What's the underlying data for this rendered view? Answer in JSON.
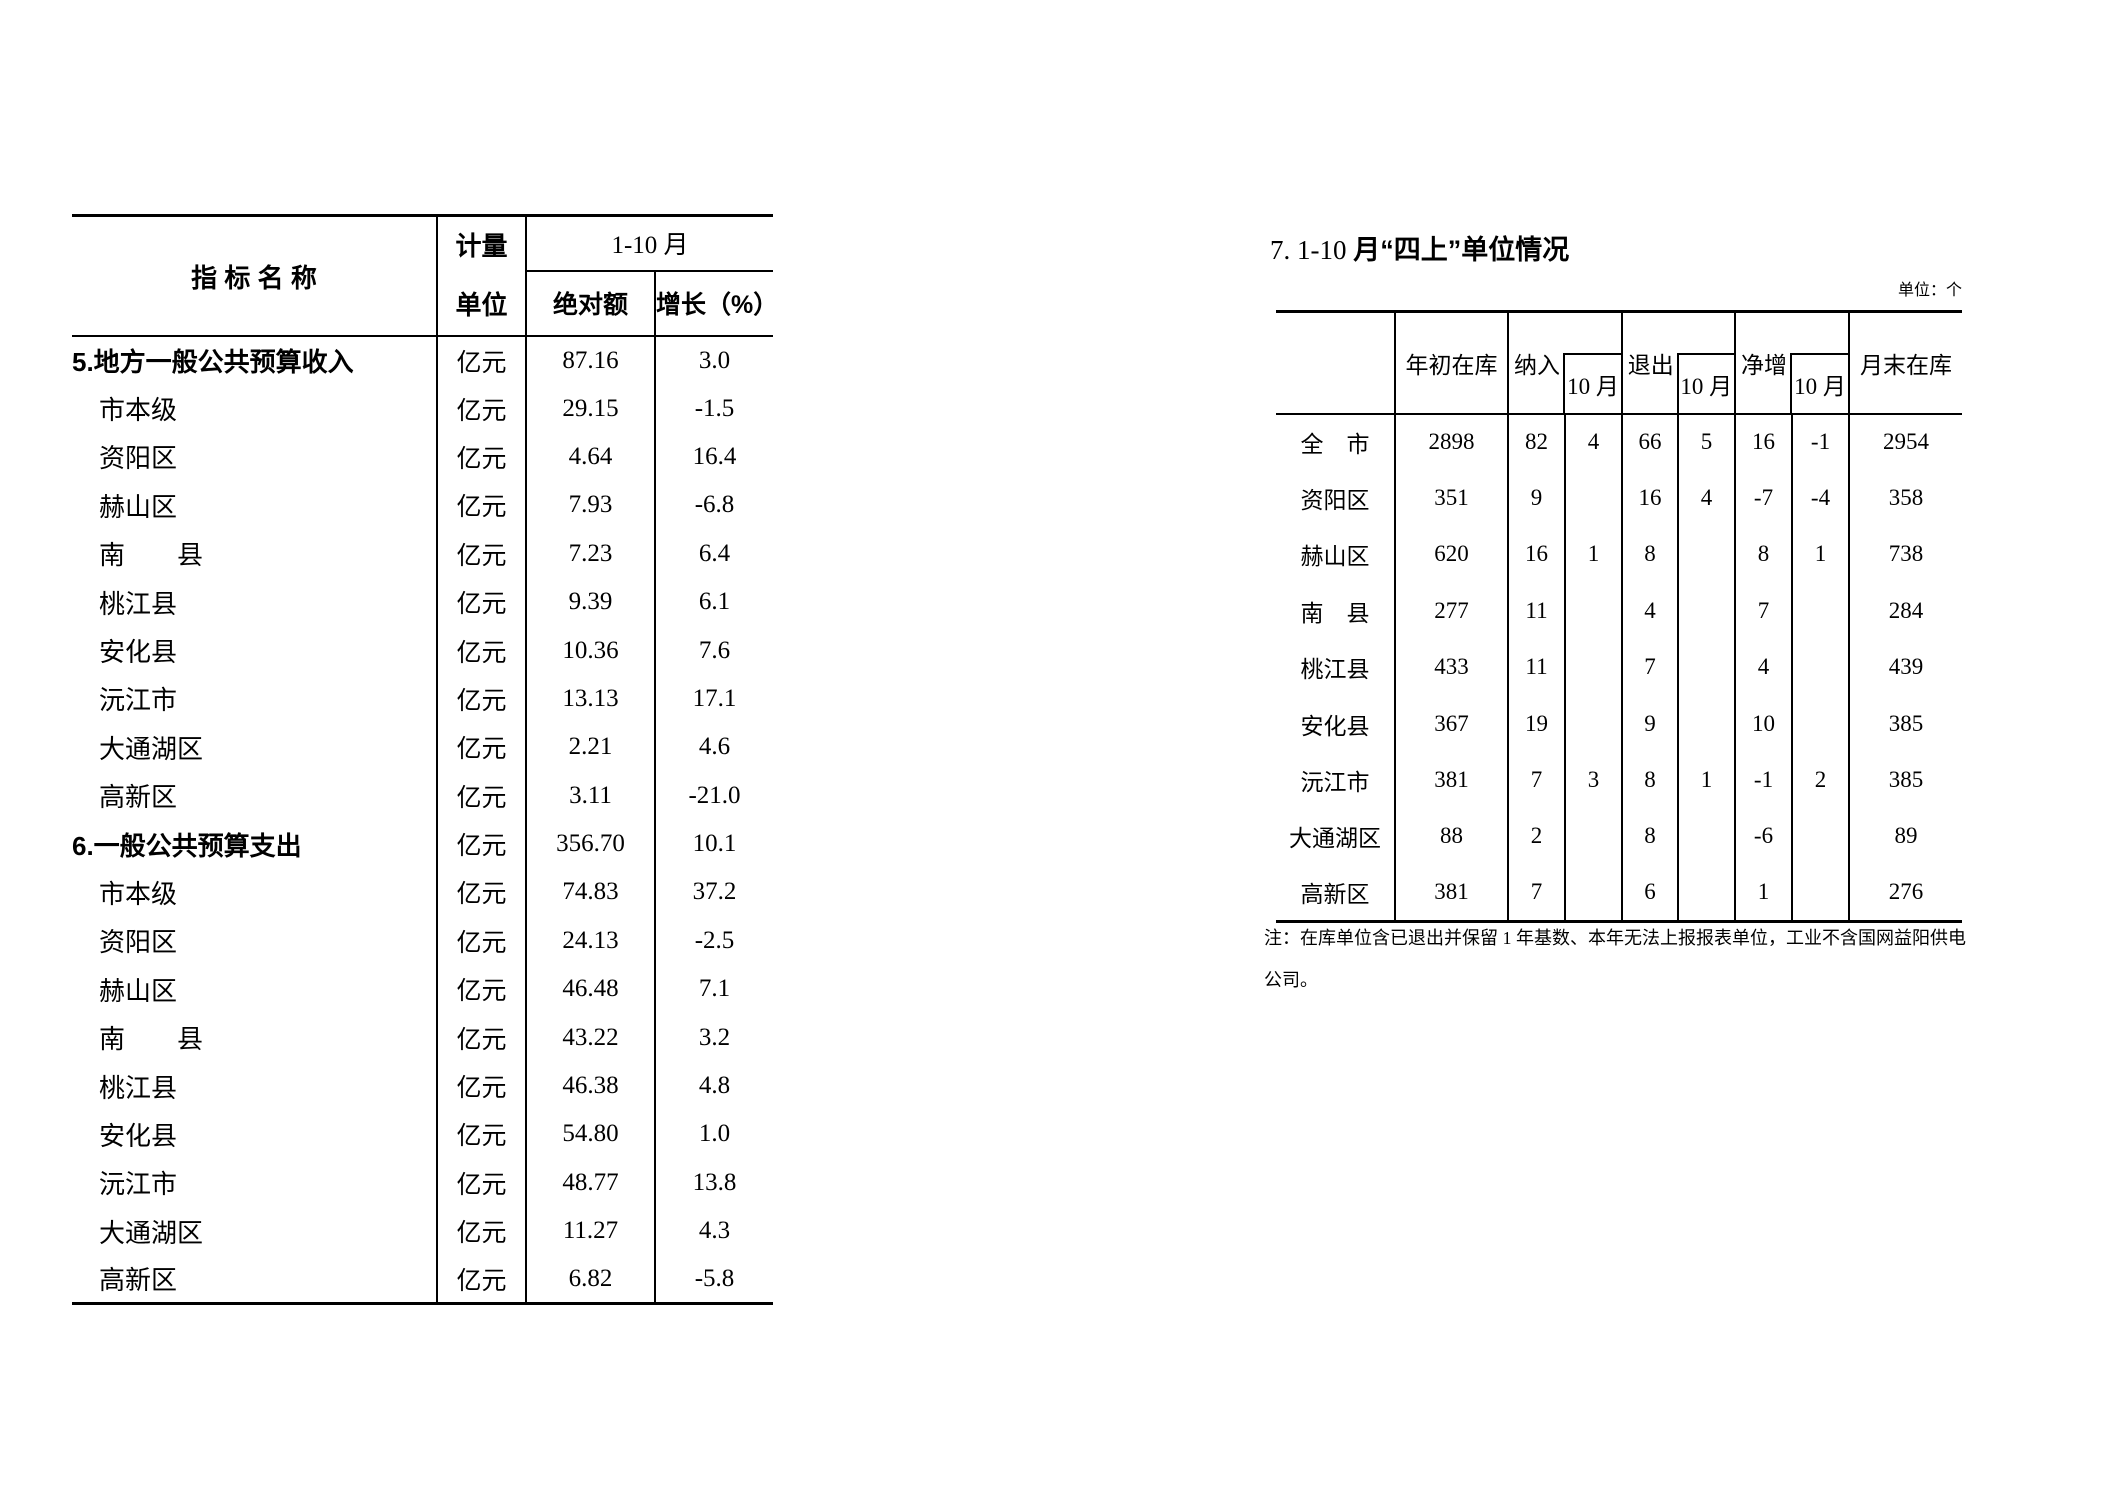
{
  "colors": {
    "text": "#000000",
    "background": "#ffffff",
    "border": "#000000"
  },
  "left_table": {
    "header": {
      "col_indicator": "指 标 名 称",
      "col_unit_line1": "计量",
      "col_unit_line2": "单位",
      "col_period": "1-10 月",
      "col_absolute": "绝对额",
      "col_growth": "增长（%）"
    },
    "rows": [
      {
        "label": "5.地方一般公共预算收入",
        "bold": true,
        "indent": false,
        "unit": "亿元",
        "absolute": "87.16",
        "growth": "3.0"
      },
      {
        "label": "市本级",
        "bold": false,
        "indent": true,
        "unit": "亿元",
        "absolute": "29.15",
        "growth": "-1.5"
      },
      {
        "label": "资阳区",
        "bold": false,
        "indent": true,
        "unit": "亿元",
        "absolute": "4.64",
        "growth": "16.4"
      },
      {
        "label": "赫山区",
        "bold": false,
        "indent": true,
        "unit": "亿元",
        "absolute": "7.93",
        "growth": "-6.8"
      },
      {
        "label": "南　　县",
        "bold": false,
        "indent": true,
        "unit": "亿元",
        "absolute": "7.23",
        "growth": "6.4"
      },
      {
        "label": "桃江县",
        "bold": false,
        "indent": true,
        "unit": "亿元",
        "absolute": "9.39",
        "growth": "6.1"
      },
      {
        "label": "安化县",
        "bold": false,
        "indent": true,
        "unit": "亿元",
        "absolute": "10.36",
        "growth": "7.6"
      },
      {
        "label": "沅江市",
        "bold": false,
        "indent": true,
        "unit": "亿元",
        "absolute": "13.13",
        "growth": "17.1"
      },
      {
        "label": "大通湖区",
        "bold": false,
        "indent": true,
        "unit": "亿元",
        "absolute": "2.21",
        "growth": "4.6"
      },
      {
        "label": "高新区",
        "bold": false,
        "indent": true,
        "unit": "亿元",
        "absolute": "3.11",
        "growth": "-21.0"
      },
      {
        "label": "6.一般公共预算支出",
        "bold": true,
        "indent": false,
        "unit": "亿元",
        "absolute": "356.70",
        "growth": "10.1"
      },
      {
        "label": "市本级",
        "bold": false,
        "indent": true,
        "unit": "亿元",
        "absolute": "74.83",
        "growth": "37.2"
      },
      {
        "label": "资阳区",
        "bold": false,
        "indent": true,
        "unit": "亿元",
        "absolute": "24.13",
        "growth": "-2.5"
      },
      {
        "label": "赫山区",
        "bold": false,
        "indent": true,
        "unit": "亿元",
        "absolute": "46.48",
        "growth": "7.1"
      },
      {
        "label": "南　　县",
        "bold": false,
        "indent": true,
        "unit": "亿元",
        "absolute": "43.22",
        "growth": "3.2"
      },
      {
        "label": "桃江县",
        "bold": false,
        "indent": true,
        "unit": "亿元",
        "absolute": "46.38",
        "growth": "4.8"
      },
      {
        "label": "安化县",
        "bold": false,
        "indent": true,
        "unit": "亿元",
        "absolute": "54.80",
        "growth": "1.0"
      },
      {
        "label": "沅江市",
        "bold": false,
        "indent": true,
        "unit": "亿元",
        "absolute": "48.77",
        "growth": "13.8"
      },
      {
        "label": "大通湖区",
        "bold": false,
        "indent": true,
        "unit": "亿元",
        "absolute": "11.27",
        "growth": "4.3"
      },
      {
        "label": "高新区",
        "bold": false,
        "indent": true,
        "unit": "亿元",
        "absolute": "6.82",
        "growth": "-5.8"
      }
    ]
  },
  "right_section": {
    "title_prefix": "7. 1-10 ",
    "title_main": "月“四上”单位情况",
    "unit_note": "单位：个",
    "table": {
      "header": {
        "col_start": "年初在库",
        "col_incl": "纳入",
        "col_incl_oct": "10 月",
        "col_exit": "退出",
        "col_exit_oct": "10 月",
        "col_net": "净增",
        "col_net_oct": "10 月",
        "col_end": "月末在库"
      },
      "rows": [
        {
          "label": "全　市",
          "values": [
            "2898",
            "82",
            "4",
            "66",
            "5",
            "16",
            "-1",
            "2954"
          ]
        },
        {
          "label": "资阳区",
          "values": [
            "351",
            "9",
            "",
            "16",
            "4",
            "-7",
            "-4",
            "358"
          ]
        },
        {
          "label": "赫山区",
          "values": [
            "620",
            "16",
            "1",
            "8",
            "",
            "8",
            "1",
            "738"
          ]
        },
        {
          "label": "南　县",
          "values": [
            "277",
            "11",
            "",
            "4",
            "",
            "7",
            "",
            "284"
          ]
        },
        {
          "label": "桃江县",
          "values": [
            "433",
            "11",
            "",
            "7",
            "",
            "4",
            "",
            "439"
          ]
        },
        {
          "label": "安化县",
          "values": [
            "367",
            "19",
            "",
            "9",
            "",
            "10",
            "",
            "385"
          ]
        },
        {
          "label": "沅江市",
          "values": [
            "381",
            "7",
            "3",
            "8",
            "1",
            "-1",
            "2",
            "385"
          ]
        },
        {
          "label": "大通湖区",
          "values": [
            "88",
            "2",
            "",
            "8",
            "",
            "-6",
            "",
            "89"
          ]
        },
        {
          "label": "高新区",
          "values": [
            "381",
            "7",
            "",
            "6",
            "",
            "1",
            "",
            "276"
          ]
        }
      ]
    },
    "note_line1": "注：在库单位含已退出并保留 1 年基数、本年无法上报报表单位，工业不含国网益阳供电",
    "note_line2": "公司。"
  }
}
